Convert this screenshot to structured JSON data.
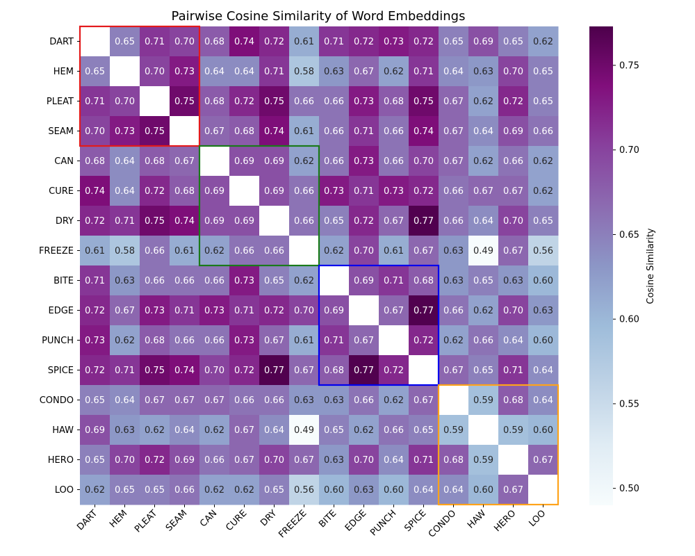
{
  "chart_data": {
    "type": "heatmap",
    "title": "Pairwise Cosine Similarity of Word Embeddings",
    "labels": [
      "DART",
      "HEM",
      "PLEAT",
      "SEAM",
      "CAN",
      "CURE",
      "DRY",
      "FREEZE",
      "BITE",
      "EDGE",
      "PUNCH",
      "SPICE",
      "CONDO",
      "HAW",
      "HERO",
      "LOO"
    ],
    "matrix": [
      [
        null,
        0.65,
        0.71,
        0.7,
        0.68,
        0.74,
        0.72,
        0.61,
        0.71,
        0.72,
        0.73,
        0.72,
        0.65,
        0.69,
        0.65,
        0.62
      ],
      [
        0.65,
        null,
        0.7,
        0.73,
        0.64,
        0.64,
        0.71,
        0.58,
        0.63,
        0.67,
        0.62,
        0.71,
        0.64,
        0.63,
        0.7,
        0.65
      ],
      [
        0.71,
        0.7,
        null,
        0.75,
        0.68,
        0.72,
        0.75,
        0.66,
        0.66,
        0.73,
        0.68,
        0.75,
        0.67,
        0.62,
        0.72,
        0.65
      ],
      [
        0.7,
        0.73,
        0.75,
        null,
        0.67,
        0.68,
        0.74,
        0.61,
        0.66,
        0.71,
        0.66,
        0.74,
        0.67,
        0.64,
        0.69,
        0.66
      ],
      [
        0.68,
        0.64,
        0.68,
        0.67,
        null,
        0.69,
        0.69,
        0.62,
        0.66,
        0.73,
        0.66,
        0.7,
        0.67,
        0.62,
        0.66,
        0.62
      ],
      [
        0.74,
        0.64,
        0.72,
        0.68,
        0.69,
        null,
        0.69,
        0.66,
        0.73,
        0.71,
        0.73,
        0.72,
        0.66,
        0.67,
        0.67,
        0.62
      ],
      [
        0.72,
        0.71,
        0.75,
        0.74,
        0.69,
        0.69,
        null,
        0.66,
        0.65,
        0.72,
        0.67,
        0.77,
        0.66,
        0.64,
        0.7,
        0.65
      ],
      [
        0.61,
        0.58,
        0.66,
        0.61,
        0.62,
        0.66,
        0.66,
        null,
        0.62,
        0.7,
        0.61,
        0.67,
        0.63,
        0.49,
        0.67,
        0.56
      ],
      [
        0.71,
        0.63,
        0.66,
        0.66,
        0.66,
        0.73,
        0.65,
        0.62,
        null,
        0.69,
        0.71,
        0.68,
        0.63,
        0.65,
        0.63,
        0.6
      ],
      [
        0.72,
        0.67,
        0.73,
        0.71,
        0.73,
        0.71,
        0.72,
        0.7,
        0.69,
        null,
        0.67,
        0.77,
        0.66,
        0.62,
        0.7,
        0.63
      ],
      [
        0.73,
        0.62,
        0.68,
        0.66,
        0.66,
        0.73,
        0.67,
        0.61,
        0.71,
        0.67,
        null,
        0.72,
        0.62,
        0.66,
        0.64,
        0.6
      ],
      [
        0.72,
        0.71,
        0.75,
        0.74,
        0.7,
        0.72,
        0.77,
        0.67,
        0.68,
        0.77,
        0.72,
        null,
        0.67,
        0.65,
        0.71,
        0.64
      ],
      [
        0.65,
        0.64,
        0.67,
        0.67,
        0.67,
        0.66,
        0.66,
        0.63,
        0.63,
        0.66,
        0.62,
        0.67,
        null,
        0.59,
        0.68,
        0.64
      ],
      [
        0.69,
        0.63,
        0.62,
        0.64,
        0.62,
        0.67,
        0.64,
        0.49,
        0.65,
        0.62,
        0.66,
        0.65,
        0.59,
        null,
        0.59,
        0.6
      ],
      [
        0.65,
        0.7,
        0.72,
        0.69,
        0.66,
        0.67,
        0.7,
        0.67,
        0.63,
        0.7,
        0.64,
        0.71,
        0.68,
        0.59,
        null,
        0.67
      ],
      [
        0.62,
        0.65,
        0.65,
        0.66,
        0.62,
        0.62,
        0.65,
        0.56,
        0.6,
        0.63,
        0.6,
        0.64,
        0.64,
        0.6,
        0.67,
        null
      ]
    ],
    "color_range": [
      0.49,
      0.773
    ],
    "colormap": [
      "#f7fcfd",
      "#e0ecf4",
      "#bfd3e6",
      "#9ebcda",
      "#8c96c6",
      "#8c6bb1",
      "#88419d",
      "#810f7c",
      "#4d004b"
    ],
    "colorbar": {
      "label": "Cosine Similarity",
      "ticks": [
        0.5,
        0.55,
        0.6,
        0.65,
        0.7,
        0.75
      ],
      "tick_labels": [
        "0.50",
        "0.55",
        "0.60",
        "0.65",
        "0.70",
        "0.75"
      ]
    },
    "groups": [
      {
        "start": 0,
        "end": 3,
        "color": "#e31a1c"
      },
      {
        "start": 4,
        "end": 7,
        "color": "#1a7a1a"
      },
      {
        "start": 8,
        "end": 11,
        "color": "#0000ee"
      },
      {
        "start": 12,
        "end": 15,
        "color": "#ffa31a"
      }
    ]
  }
}
